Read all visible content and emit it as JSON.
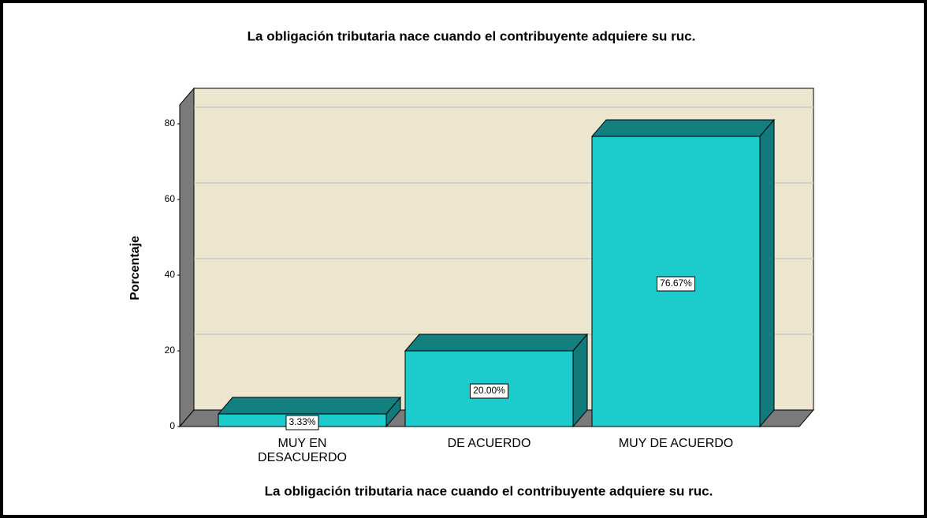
{
  "chart_data": {
    "type": "bar3d",
    "title": "La obligación tributaria nace cuando el contribuyente adquiere su ruc.",
    "x_label": "La obligación tributaria nace cuando el contribuyente adquiere su ruc.",
    "y_label": "Porcentaje",
    "categories": [
      "MUY EN DESACUERDO",
      "DE ACUERDO",
      "MUY DE ACUERDO"
    ],
    "values": [
      3.33,
      20.0,
      76.67
    ],
    "value_labels": [
      "3.33%",
      "20.00%",
      "76.67%"
    ],
    "color": "#1ccccc",
    "ylim": [
      0,
      85
    ],
    "yticks": [
      0,
      20,
      40,
      60,
      80
    ],
    "grid": true
  }
}
